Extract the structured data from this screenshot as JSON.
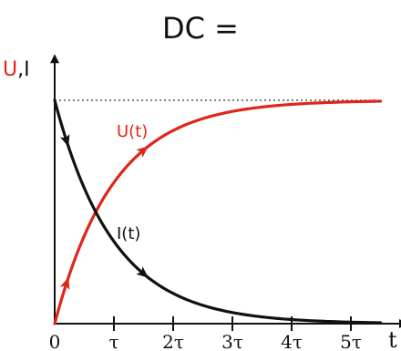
{
  "chart_data": {
    "type": "line",
    "title": "DC =",
    "ylabel_parts": [
      {
        "text": "U",
        "color": "#e0251b"
      },
      {
        "text": ",I",
        "color": "#111111"
      }
    ],
    "xlabel": "t",
    "x_ticks": [
      {
        "value": 0,
        "label": "0"
      },
      {
        "value": 1,
        "label": "τ"
      },
      {
        "value": 2,
        "label": "2τ"
      },
      {
        "value": 3,
        "label": "3τ"
      },
      {
        "value": 4,
        "label": "4τ"
      },
      {
        "value": 5,
        "label": "5τ"
      }
    ],
    "xlim": [
      0,
      5.8
    ],
    "ylim": [
      0,
      1.15
    ],
    "asymptote": {
      "y": 1.0,
      "style": "dotted"
    },
    "series": [
      {
        "name": "U(t)",
        "color": "#e0251b",
        "formula": "1 - exp(-t)",
        "x": [
          0,
          0.25,
          0.5,
          0.75,
          1,
          1.5,
          2,
          2.5,
          3,
          3.5,
          4,
          4.5,
          5,
          5.5
        ],
        "values": [
          0,
          0.22,
          0.39,
          0.53,
          0.63,
          0.78,
          0.86,
          0.92,
          0.95,
          0.97,
          0.98,
          0.99,
          0.99,
          1.0
        ]
      },
      {
        "name": "I(t)",
        "color": "#111111",
        "formula": "exp(-t)",
        "x": [
          0,
          0.25,
          0.5,
          0.75,
          1,
          1.5,
          2,
          2.5,
          3,
          3.5,
          4,
          4.5,
          5,
          5.5
        ],
        "values": [
          1.0,
          0.78,
          0.61,
          0.47,
          0.37,
          0.22,
          0.14,
          0.08,
          0.05,
          0.03,
          0.02,
          0.01,
          0.01,
          0.0
        ]
      }
    ],
    "arrows": [
      {
        "series": "U(t)",
        "x": 0.2
      },
      {
        "series": "U(t)",
        "x": 1.5
      },
      {
        "series": "I(t)",
        "x": 0.2
      },
      {
        "series": "I(t)",
        "x": 1.5
      }
    ]
  }
}
